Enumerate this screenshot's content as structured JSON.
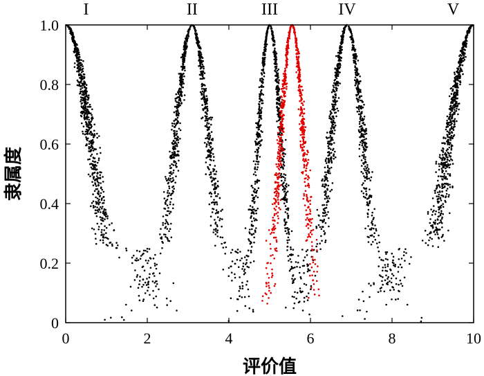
{
  "chart_data": {
    "type": "scatter",
    "title": "",
    "xlabel": "评价值",
    "ylabel": "隶属度",
    "xlim": [
      0,
      10
    ],
    "ylim": [
      0,
      1
    ],
    "xticks": [
      "0",
      "2",
      "4",
      "6",
      "8",
      "10"
    ],
    "yticks": [
      "0",
      "0.2",
      "0.4",
      "0.6",
      "0.8",
      "1.0"
    ],
    "grade_labels": [
      {
        "text": "I",
        "x": 0.5
      },
      {
        "text": "II",
        "x": 3.1
      },
      {
        "text": "III",
        "x": 5.0
      },
      {
        "text": "IV",
        "x": 6.9
      },
      {
        "text": "V",
        "x": 9.5
      }
    ],
    "grid": false,
    "series": [
      {
        "color": "#000000",
        "shape": "half-bell",
        "center": 0.0,
        "spread": 1.55,
        "tail": 1.7,
        "points": 720
      },
      {
        "color": "#000000",
        "shape": "bell",
        "center": 3.1,
        "spread": 1.05,
        "tail": 1.35,
        "points": 900
      },
      {
        "color": "#000000",
        "shape": "bell",
        "center": 5.0,
        "spread": 0.72,
        "tail": 1.1,
        "points": 760
      },
      {
        "color": "#000000",
        "shape": "bell",
        "center": 6.9,
        "spread": 1.0,
        "tail": 1.35,
        "points": 900
      },
      {
        "color": "#000000",
        "shape": "half-bell",
        "center": 10.0,
        "spread": 1.55,
        "tail": 1.7,
        "points": 720
      },
      {
        "color": "#e00000",
        "shape": "bell",
        "center": 5.55,
        "spread": 0.72,
        "tail": 1.0,
        "points": 760
      }
    ]
  }
}
